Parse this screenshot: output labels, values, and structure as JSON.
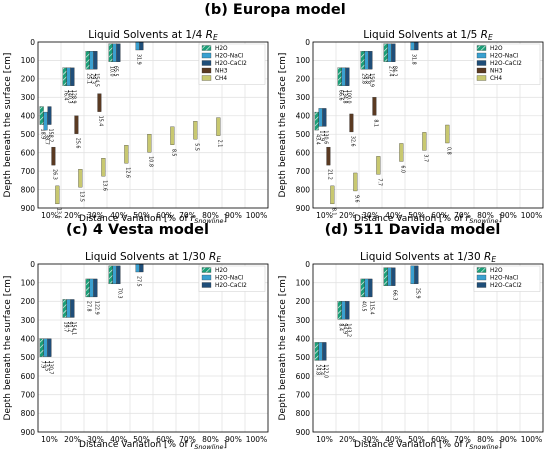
{
  "headings": {
    "europa": "(b) Europa model",
    "vesta": "(c) 4 Vesta model",
    "davida": "(d) 511 Davida model"
  },
  "chart_data": [
    {
      "type": "bar",
      "title": "Liquid Solvents at 1/4 R_E",
      "title_parts": [
        "Liquid Solvents at 1/4 ",
        "R",
        "E"
      ],
      "xlabel_parts": [
        "Distance Variation [% of ",
        "r",
        "Snowline",
        "]"
      ],
      "ylabel": "Depth beneath the surface [cm]",
      "categories": [
        "10%",
        "20%",
        "30%",
        "40%",
        "50%",
        "60%",
        "70%",
        "80%",
        "90%",
        "100%"
      ],
      "yticks": [
        0,
        100,
        200,
        300,
        400,
        500,
        600,
        700,
        800,
        900
      ],
      "ylim": [
        0,
        900
      ],
      "y_inverted": true,
      "grid": true,
      "legend": "top-right",
      "series": [
        {
          "name": "H2O",
          "color": "#1b9e77",
          "hatch": true,
          "values": [
            350,
            140,
            50,
            10,
            null,
            null,
            null,
            null,
            null,
            null
          ],
          "labels": [
            "18.9",
            "76.4",
            "25.1",
            "10.0",
            "",
            "",
            "",
            "",
            "",
            ""
          ]
        },
        {
          "name": "H2O-NaCl",
          "color": "#3aa0d0",
          "values": [
            380,
            140,
            50,
            10,
            0,
            null,
            null,
            null,
            null,
            null
          ],
          "labels": [
            "38.7",
            "140.3",
            "79.3",
            "65.5",
            "31.9",
            "",
            "",
            "",
            "",
            ""
          ]
        },
        {
          "name": "H2O-CaCl2",
          "color": "#1f4e79",
          "values": [
            350,
            140,
            50,
            10,
            0,
            null,
            null,
            null,
            null,
            null
          ],
          "labels": [
            "158.2",
            "128.9",
            "154.5",
            "",
            "",
            "",
            "",
            "",
            "",
            ""
          ]
        },
        {
          "name": "NH3",
          "color": "#5a3a22",
          "values": [
            570,
            400,
            280,
            null,
            null,
            null,
            null,
            null,
            null,
            null
          ],
          "labels": [
            "26.3",
            "25.6",
            "15.4",
            "",
            "",
            "",
            "",
            "",
            "",
            ""
          ]
        },
        {
          "name": "CH4",
          "color": "#c8c870",
          "values": [
            780,
            690,
            630,
            560,
            500,
            460,
            430,
            410,
            null,
            null
          ],
          "labels": [
            "13.6",
            "13.5",
            "13.6",
            "12.6",
            "10.8",
            "8.5",
            "5.5",
            "2.1",
            "",
            ""
          ]
        }
      ]
    },
    {
      "type": "bar",
      "title": "Liquid Solvents at 1/5 R_E",
      "title_parts": [
        "Liquid Solvents at 1/5 ",
        "R",
        "E"
      ],
      "xlabel_parts": [
        "Distance Variation [% of ",
        "r",
        "Snowline",
        "]"
      ],
      "ylabel": "Depth beneath the surface [cm]",
      "categories": [
        "10%",
        "20%",
        "30%",
        "40%",
        "50%",
        "60%",
        "70%",
        "80%",
        "90%",
        "100%"
      ],
      "yticks": [
        0,
        100,
        200,
        300,
        400,
        500,
        600,
        700,
        800,
        900
      ],
      "ylim": [
        0,
        900
      ],
      "y_inverted": true,
      "grid": true,
      "legend": "top-right",
      "series": [
        {
          "name": "H2O",
          "color": "#1b9e77",
          "hatch": true,
          "values": [
            380,
            140,
            50,
            10,
            null,
            null,
            null,
            null,
            null,
            null
          ],
          "labels": [
            "43.4",
            "66.6",
            "29.8",
            "",
            "",
            "",
            "",
            "",
            "",
            ""
          ]
        },
        {
          "name": "H2O-NaCl",
          "color": "#3aa0d0",
          "values": [
            360,
            140,
            50,
            10,
            0,
            null,
            null,
            null,
            null,
            null
          ],
          "labels": [
            "17.9",
            "134.8",
            "76.8",
            "27.4",
            "31.8",
            "",
            "",
            "",
            "",
            ""
          ]
        },
        {
          "name": "H2O-CaCl2",
          "color": "#1f4e79",
          "values": [
            360,
            140,
            50,
            10,
            0,
            null,
            null,
            null,
            null,
            null
          ],
          "labels": [
            "130.6",
            "100.0",
            "150.9",
            "84.2",
            "",
            "",
            "",
            "",
            "",
            ""
          ]
        },
        {
          "name": "NH3",
          "color": "#5a3a22",
          "values": [
            570,
            390,
            300,
            null,
            null,
            null,
            null,
            null,
            null,
            null
          ],
          "labels": [
            "21.2",
            "32.6",
            "8.1",
            "",
            "",
            "",
            "",
            "",
            "",
            ""
          ]
        },
        {
          "name": "CH4",
          "color": "#c8c870",
          "values": [
            780,
            710,
            620,
            550,
            490,
            450,
            null,
            null,
            null,
            null
          ],
          "labels": [
            "8.1",
            "9.6",
            "7.7",
            "6.0",
            "3.7",
            "0.8",
            "",
            "",
            "",
            ""
          ]
        }
      ]
    },
    {
      "type": "bar",
      "title": "Liquid Solvents at 1/30 R_E",
      "title_parts": [
        "Liquid Solvents at 1/30 ",
        "R",
        "E"
      ],
      "xlabel_parts": [
        "Distance Variation [% of ",
        "r",
        "Snowline",
        "]"
      ],
      "ylabel": "Depth beneath the surface [cm]",
      "categories": [
        "10%",
        "20%",
        "30%",
        "40%",
        "50%",
        "60%",
        "70%",
        "80%",
        "90%",
        "100%"
      ],
      "yticks": [
        0,
        100,
        200,
        300,
        400,
        500,
        600,
        700,
        800,
        900
      ],
      "ylim": [
        0,
        900
      ],
      "y_inverted": true,
      "grid": true,
      "legend": "top-right",
      "series": [
        {
          "name": "H2O",
          "color": "#1b9e77",
          "hatch": true,
          "values": [
            400,
            190,
            80,
            10,
            null,
            null,
            null,
            null,
            null,
            null
          ],
          "labels": [
            "7.9",
            "19.7",
            "27.8",
            "",
            "",
            "",
            "",
            "",
            "",
            ""
          ]
        },
        {
          "name": "H2O-NaCl",
          "color": "#3aa0d0",
          "values": [
            400,
            190,
            80,
            10,
            0,
            null,
            null,
            null,
            null,
            null
          ],
          "labels": [
            "13.5",
            "91.7",
            "",
            "",
            "27.5",
            "",
            "",
            "",
            "",
            ""
          ]
        },
        {
          "name": "H2O-CaCl2",
          "color": "#1f4e79",
          "values": [
            400,
            190,
            80,
            10,
            0,
            null,
            null,
            null,
            null,
            null
          ],
          "labels": [
            "130.7",
            "154.1",
            "122.9",
            "70.3",
            "",
            "",
            "",
            "",
            "",
            ""
          ]
        }
      ]
    },
    {
      "type": "bar",
      "title": "Liquid Solvents at 1/30 R_E",
      "title_parts": [
        "Liquid Solvents at 1/30 ",
        "R",
        "E"
      ],
      "xlabel_parts": [
        "Distance Variation [% of ",
        "r",
        "Snowline",
        "]"
      ],
      "ylabel": "Depth beneath the surface [cm]",
      "categories": [
        "10%",
        "20%",
        "30%",
        "40%",
        "50%",
        "60%",
        "70%",
        "80%",
        "90%",
        "100%"
      ],
      "yticks": [
        0,
        100,
        200,
        300,
        400,
        500,
        600,
        700,
        800,
        900
      ],
      "ylim": [
        0,
        900
      ],
      "y_inverted": true,
      "grid": true,
      "legend": "top-right",
      "series": [
        {
          "name": "H2O",
          "color": "#1b9e77",
          "hatch": true,
          "values": [
            420,
            200,
            80,
            20,
            null,
            null,
            null,
            null,
            null,
            null
          ],
          "labels": [
            "24.8",
            "8.4",
            "40.5",
            "",
            "",
            "",
            "",
            "",
            "",
            ""
          ]
        },
        {
          "name": "H2O-NaCl",
          "color": "#3aa0d0",
          "values": [
            420,
            200,
            80,
            20,
            10,
            null,
            null,
            null,
            null,
            null
          ],
          "labels": [
            "72.4",
            "94.9",
            "",
            "",
            "",
            "",
            "",
            "",
            "",
            ""
          ]
        },
        {
          "name": "H2O-CaCl2",
          "color": "#1f4e79",
          "values": [
            420,
            200,
            80,
            20,
            10,
            null,
            null,
            null,
            null,
            null
          ],
          "labels": [
            "122.0",
            "143.2",
            "115.4",
            "66.3",
            "25.9",
            "",
            "",
            "",
            "",
            ""
          ]
        }
      ]
    }
  ]
}
